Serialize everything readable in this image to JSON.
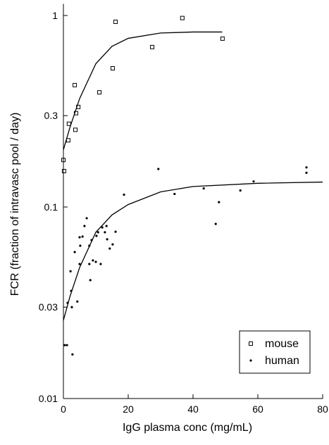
{
  "chart_data": {
    "type": "scatter",
    "x_label": "IgG plasma conc (mg/mL)",
    "y_label": "FCR (fraction of intravasc pool / day)",
    "xlim": [
      0,
      80
    ],
    "xticks": [
      0,
      20,
      40,
      60,
      80
    ],
    "ylim": [
      0.01,
      1.15
    ],
    "yticks": [
      0.01,
      0.03,
      0.1,
      0.3,
      1
    ],
    "ylog": true,
    "legend": "lower right",
    "series": [
      {
        "name": "mouse",
        "marker": "square",
        "color": "#000000",
        "x": [
          0,
          0.2,
          1.5,
          1.7,
          3.5,
          3.9,
          3.7,
          4.6,
          11.1,
          15.2,
          16.1,
          27.4,
          36.7,
          49.1
        ],
        "values": [
          0.176,
          0.154,
          0.223,
          0.272,
          0.433,
          0.309,
          0.253,
          0.333,
          0.397,
          0.53,
          0.927,
          0.684,
          0.97,
          0.757
        ]
      },
      {
        "name": "human",
        "marker": "dot",
        "color": "#000000",
        "x": [
          0.4,
          1.1,
          2.8,
          1.3,
          2.6,
          2.4,
          2.2,
          3.5,
          4.3,
          5.0,
          5.2,
          5.0,
          5.9,
          6.5,
          7.2,
          8.0,
          8.0,
          8.3,
          8.7,
          9.1,
          10,
          10.2,
          10.7,
          11.5,
          12,
          12.8,
          13.3,
          13.5,
          14.3,
          15.2,
          16.1,
          18.7,
          29.3,
          34.3,
          43.3,
          48,
          47,
          54.6,
          58.7,
          75,
          75
        ],
        "values": [
          0.019,
          0.019,
          0.017,
          0.0316,
          0.03,
          0.0365,
          0.0462,
          0.0582,
          0.0321,
          0.0504,
          0.0628,
          0.0695,
          0.0701,
          0.0796,
          0.0874,
          0.0628,
          0.0504,
          0.0415,
          0.0672,
          0.0526,
          0.0517,
          0.0707,
          0.0738,
          0.0504,
          0.0782,
          0.0738,
          0.0796,
          0.0678,
          0.0607,
          0.0638,
          0.0743,
          0.116,
          0.158,
          0.117,
          0.125,
          0.106,
          0.0816,
          0.122,
          0.136,
          0.161,
          0.151
        ]
      }
    ],
    "fits": [
      {
        "color": "#000000",
        "x": [
          0,
          2,
          5,
          10,
          15,
          20,
          30,
          40,
          49
        ],
        "values": [
          0.199,
          0.26,
          0.368,
          0.56,
          0.69,
          0.76,
          0.81,
          0.82,
          0.82
        ]
      },
      {
        "color": "#000000",
        "x": [
          0,
          2,
          5,
          10,
          15,
          20,
          30,
          40,
          60,
          80
        ],
        "values": [
          0.0256,
          0.034,
          0.0483,
          0.0738,
          0.091,
          0.103,
          0.12,
          0.128,
          0.133,
          0.135
        ]
      }
    ]
  }
}
